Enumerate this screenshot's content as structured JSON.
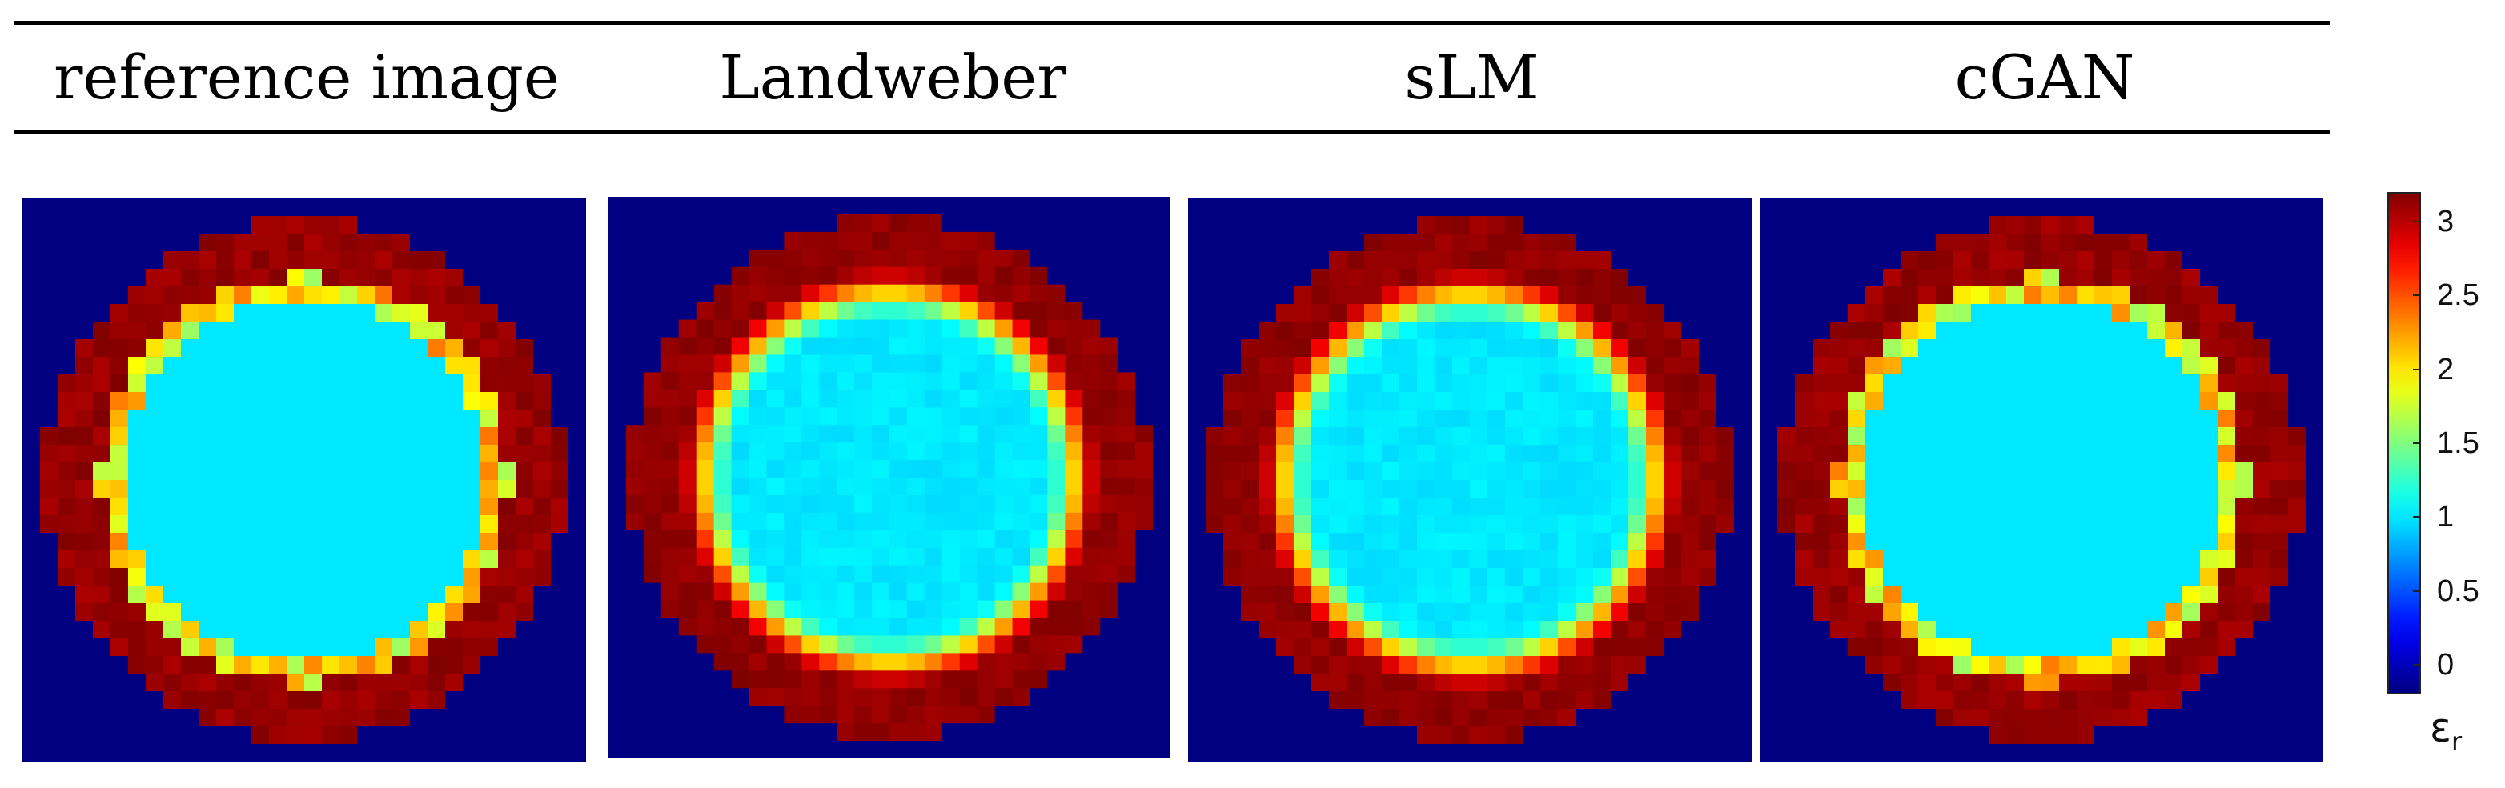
{
  "headers": [
    {
      "key": "reference",
      "label": "reference image"
    },
    {
      "key": "landweber",
      "label": "Landweber"
    },
    {
      "key": "slm",
      "label": "sLM"
    },
    {
      "key": "cgan",
      "label": "cGAN"
    }
  ],
  "colorbar": {
    "symbol": "ε",
    "subscript": "r",
    "ticks": [
      "0",
      "0.5",
      "1",
      "1.5",
      "2",
      "2.5",
      "3"
    ],
    "tick_values": [
      0,
      0.5,
      1,
      1.5,
      2,
      2.5,
      3
    ],
    "range": [
      -0.2,
      3.2
    ],
    "colormap": "jet"
  },
  "image_data": {
    "grid_size": 32,
    "background_value": -0.2,
    "outer_ring_value": 3.2,
    "inner_disk_value": 1.0,
    "panels": [
      {
        "key": "reference",
        "transition": "sharp"
      },
      {
        "key": "landweber",
        "transition": "smooth"
      },
      {
        "key": "slm",
        "transition": "smooth"
      },
      {
        "key": "cgan",
        "transition": "sharp"
      }
    ]
  }
}
